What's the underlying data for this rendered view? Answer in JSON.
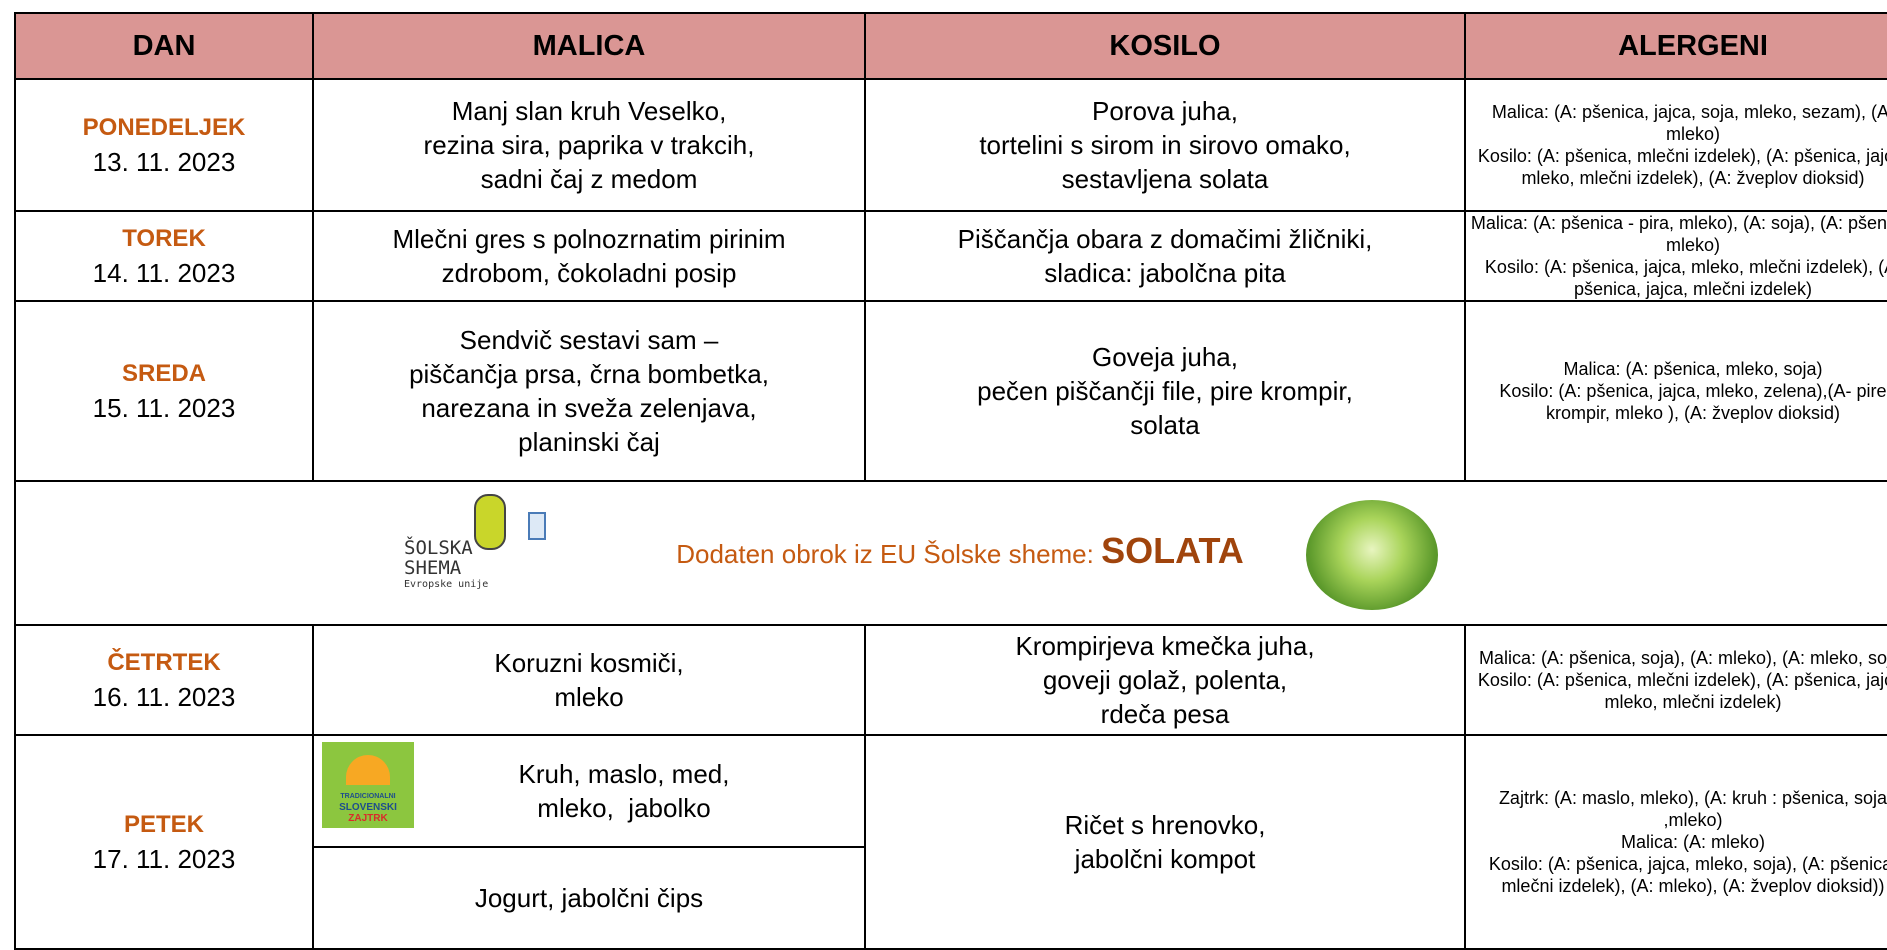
{
  "header": {
    "columns": [
      "DAN",
      "MALICA",
      "KOSILO",
      "ALERGENI"
    ]
  },
  "days": [
    {
      "day": "PONEDELJEK",
      "date": "13. 11. 2023",
      "malica": [
        "Manj slan kruh Veselko,",
        "rezina sira, paprika v trakcih,",
        "sadni čaj z medom"
      ],
      "kosilo": [
        "Porova juha,",
        "tortelini s sirom in sirovo omako,",
        "sestavljena solata"
      ],
      "alergeni": [
        "Malica: (A: pšenica, jajca, soja, mleko, sezam), (A: mleko)",
        "Kosilo: (A: pšenica, mlečni izdelek), (A: pšenica, jajca, mleko, mlečni izdelek), (A: žveplov dioksid)"
      ]
    },
    {
      "day": "TOREK",
      "date": "14. 11. 2023",
      "malica": [
        "Mlečni gres s polnozrnatim pirinim",
        "zdrobom, čokoladni posip"
      ],
      "kosilo": [
        "Piščančja obara z domačimi žličniki,",
        "sladica: jabolčna pita"
      ],
      "alergeni": [
        "Malica: (A: pšenica - pira, mleko), (A: soja), (A: pšenica, mleko)",
        "Kosilo: (A: pšenica, jajca, mleko, mlečni izdelek), (A: pšenica, jajca, mlečni izdelek)"
      ]
    },
    {
      "day": "SREDA",
      "date": "15. 11. 2023",
      "malica": [
        "Sendvič sestavi sam –",
        "piščančja prsa, črna bombetka,",
        "narezana in sveža zelenjava,",
        "planinski čaj"
      ],
      "kosilo": [
        "Goveja juha,",
        "pečen piščančji file, pire krompir,",
        "solata"
      ],
      "alergeni": [
        "Malica: (A: pšenica, mleko, soja)",
        "Kosilo:  (A: pšenica, jajca, mleko, zelena),(A- pire krompir, mleko ), (A: žveplov dioksid)"
      ]
    },
    {
      "day": "ČETRTEK",
      "date": "16. 11. 2023",
      "malica": [
        "Koruzni kosmiči,",
        "mleko"
      ],
      "kosilo": [
        "Krompirjeva kmečka juha,",
        "goveji golaž, polenta,",
        "rdeča pesa"
      ],
      "alergeni": [
        "Malica: (A: pšenica, soja), (A: mleko), (A: mleko, soja)",
        "Kosilo: (A: pšenica, mlečni izdelek), (A: pšenica, jajca, mleko, mlečni izdelek)"
      ]
    },
    {
      "day": "PETEK",
      "date": "17. 11. 2023",
      "malica": [
        "Kruh, maslo, med,",
        "mleko,  jabolko"
      ],
      "malica_extra": [
        "Jogurt, jabolčni čips"
      ],
      "logo": [
        "TRADICIONALNI",
        "SLOVENSKI",
        "ZAJTRK"
      ],
      "kosilo": [
        "Ričet s hrenovko,",
        "jabolčni kompot"
      ],
      "alergeni": [
        "Zajtrk: (A: maslo, mleko), (A: kruh : pšenica, soja ,mleko)",
        "Malica: (A: mleko)",
        "Kosilo: (A: pšenica, jajca, mleko, soja), (A: pšenica, mlečni izdelek), (A: mleko), (A: žveplov dioksid))"
      ]
    }
  ],
  "banner": {
    "logo": [
      "ŠOLSKA",
      "SHEMA",
      "Evropske unije"
    ],
    "text": "Dodaten obrok iz EU Šolske sheme:",
    "highlight": "SOLATA"
  }
}
